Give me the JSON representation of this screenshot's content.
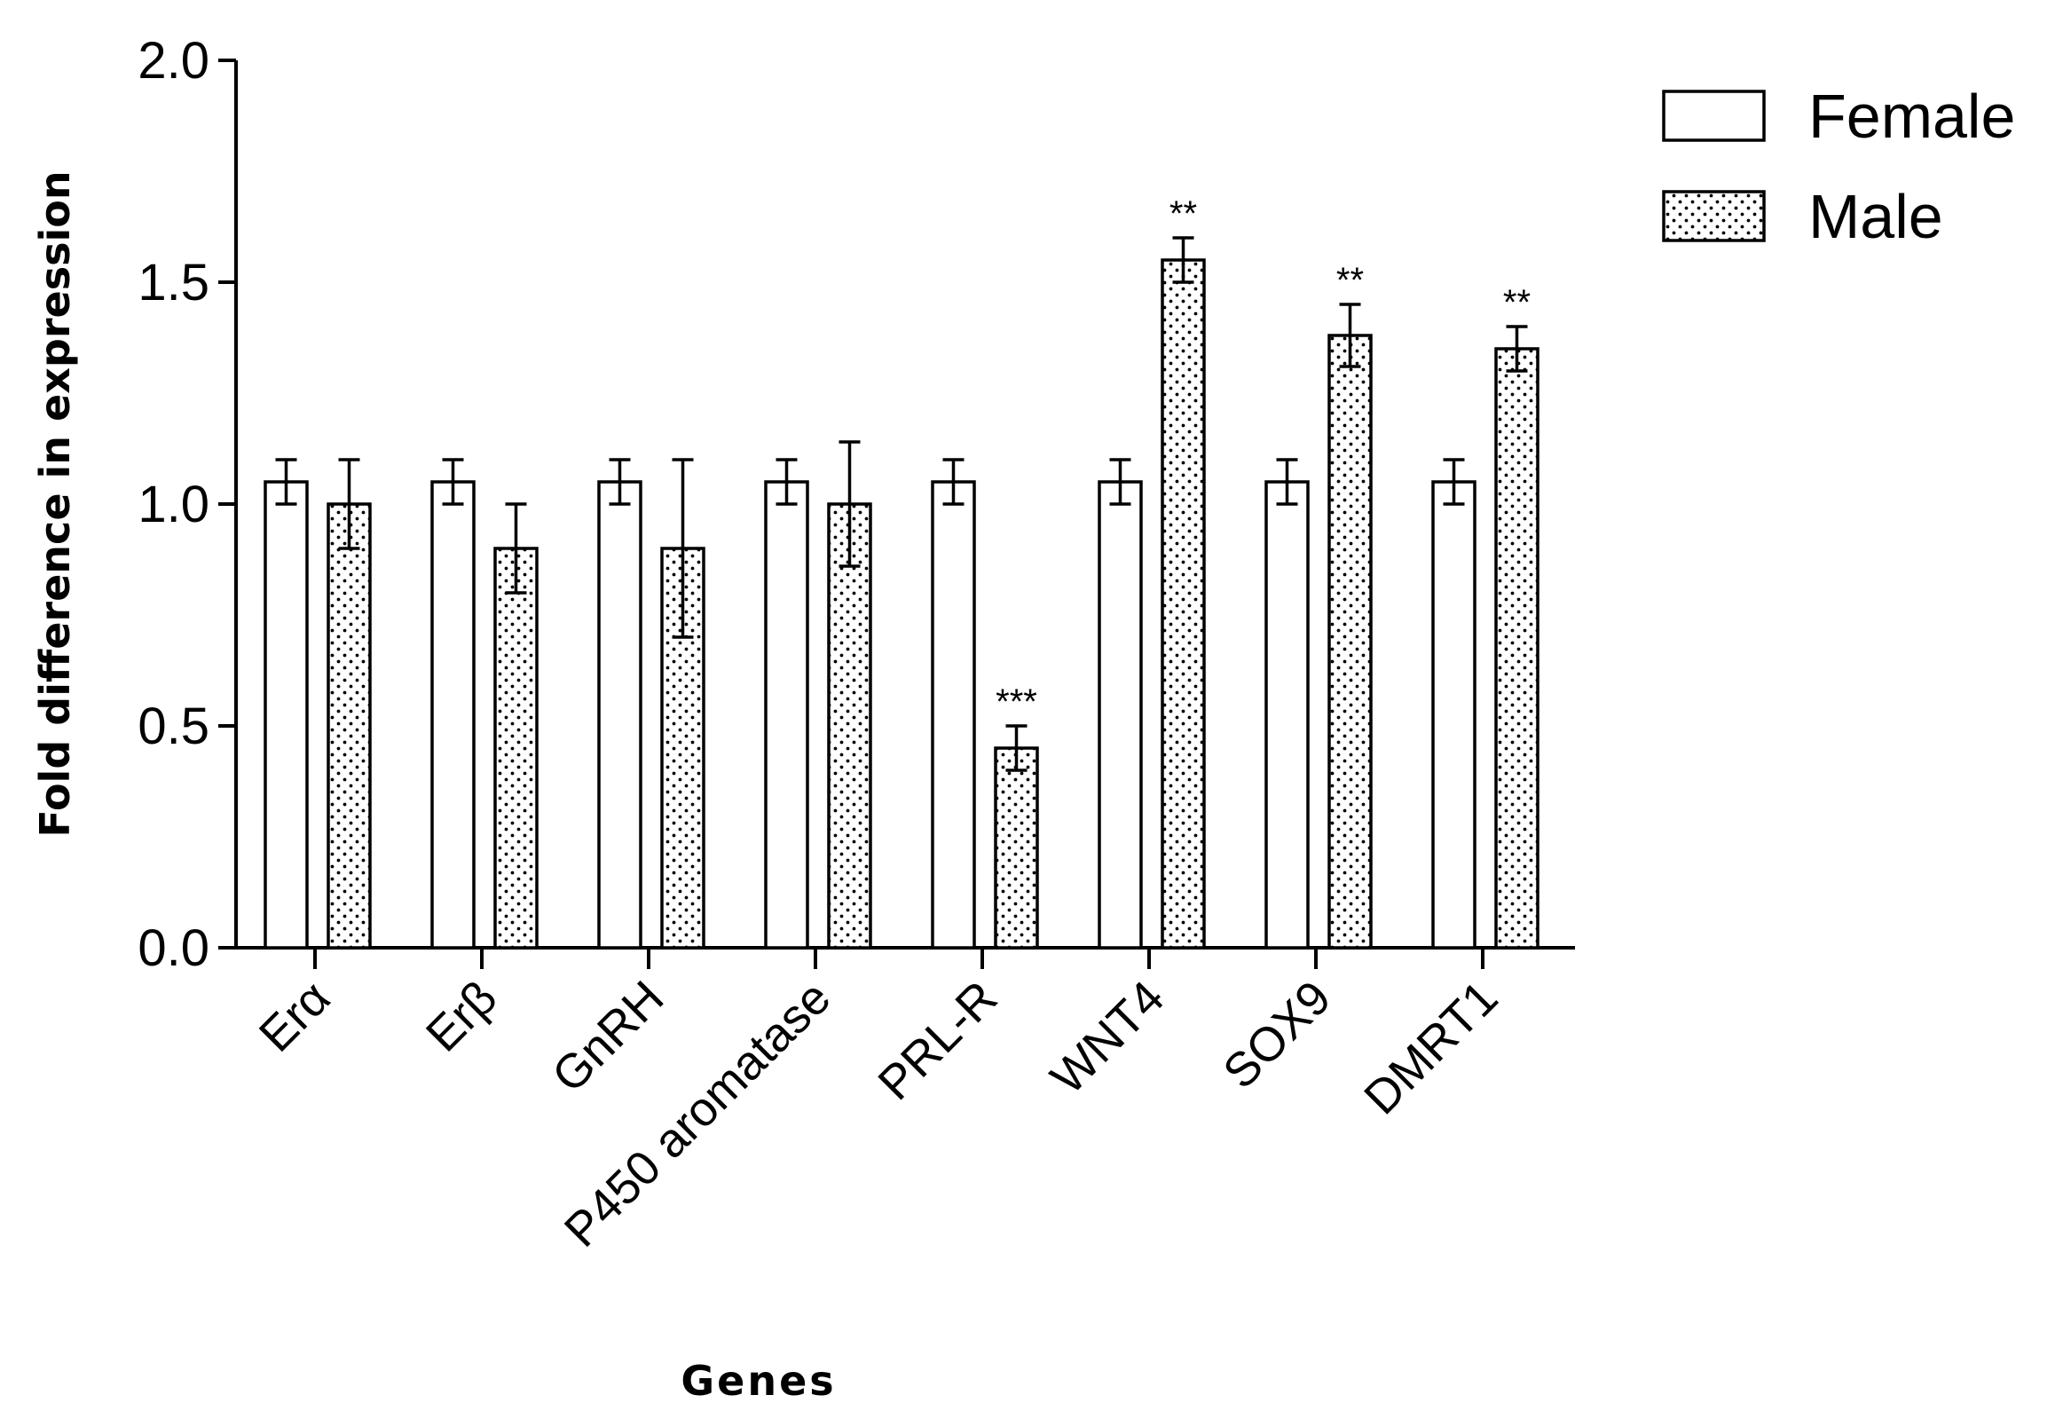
{
  "chart_data": {
    "type": "bar",
    "xlabel": "Genes",
    "ylabel": "Fold difference in expression",
    "ylim": [
      0,
      2.0
    ],
    "yticks": [
      "0.0",
      "0.5",
      "1.0",
      "1.5",
      "2.0"
    ],
    "categories": [
      "Erα",
      "Erβ",
      "GnRH",
      "P450 aromatase",
      "PRL-R",
      "WNT4",
      "SOX9",
      "DMRT1"
    ],
    "series": [
      {
        "name": "Female",
        "pattern": "plain",
        "values": [
          1.05,
          1.05,
          1.05,
          1.05,
          1.05,
          1.05,
          1.05,
          1.05
        ],
        "errors": [
          0.05,
          0.05,
          0.05,
          0.05,
          0.05,
          0.05,
          0.05,
          0.05
        ]
      },
      {
        "name": "Male",
        "pattern": "dotted",
        "values": [
          1.0,
          0.9,
          0.9,
          1.0,
          0.45,
          1.55,
          1.38,
          1.35
        ],
        "errors": [
          0.1,
          0.1,
          0.2,
          0.14,
          0.05,
          0.05,
          0.07,
          0.05
        ]
      }
    ],
    "significance": [
      "",
      "",
      "",
      "",
      "***",
      "**",
      "**",
      "**"
    ],
    "legend_position": "top-right",
    "grid": false
  }
}
